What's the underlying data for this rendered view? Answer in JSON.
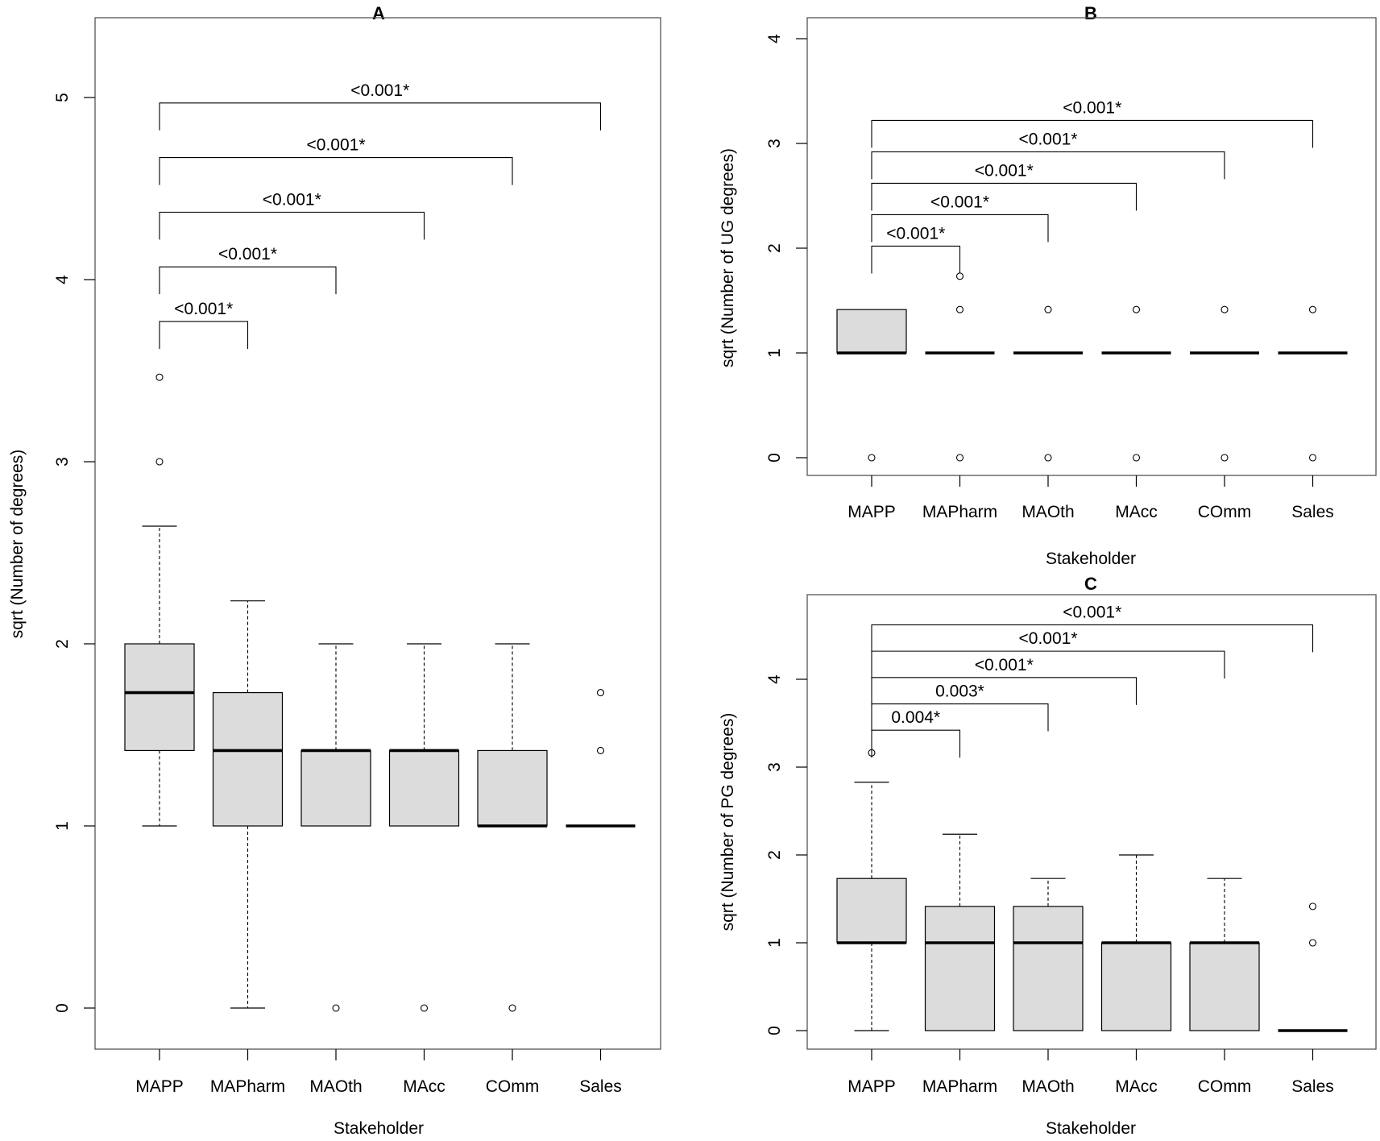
{
  "chart_data": [
    {
      "panel": "A",
      "type": "boxplot",
      "title": "A",
      "xlabel": "Stakeholder",
      "ylabel": "sqrt (Number of degrees)",
      "ylim": [
        0,
        5
      ],
      "yticks": [
        0,
        1,
        2,
        3,
        4,
        5
      ],
      "categories": [
        "MAPP",
        "MAPharm",
        "MAOth",
        "MAcc",
        "COmm",
        "Sales"
      ],
      "boxes": [
        {
          "category": "MAPP",
          "whisker_low": 1.0,
          "q1": 1.414,
          "median": 1.732,
          "q3": 2.0,
          "whisker_high": 2.646,
          "outliers": [
            3.0,
            3.464
          ]
        },
        {
          "category": "MAPharm",
          "whisker_low": 0.0,
          "q1": 1.0,
          "median": 1.414,
          "q3": 1.732,
          "whisker_high": 2.236,
          "outliers": []
        },
        {
          "category": "MAOth",
          "whisker_low": 1.0,
          "q1": 1.0,
          "median": 1.414,
          "q3": 1.414,
          "whisker_high": 2.0,
          "outliers": [
            0.0
          ]
        },
        {
          "category": "MAcc",
          "whisker_low": 1.0,
          "q1": 1.0,
          "median": 1.414,
          "q3": 1.414,
          "whisker_high": 2.0,
          "outliers": [
            0.0
          ]
        },
        {
          "category": "COmm",
          "whisker_low": 1.0,
          "q1": 1.0,
          "median": 1.0,
          "q3": 1.414,
          "whisker_high": 2.0,
          "outliers": [
            0.0
          ]
        },
        {
          "category": "Sales",
          "whisker_low": 1.0,
          "q1": 1.0,
          "median": 1.0,
          "q3": 1.0,
          "whisker_high": 1.0,
          "outliers": [
            1.414,
            1.732
          ]
        }
      ],
      "comparisons": [
        {
          "from": "MAPP",
          "to": "MAPharm",
          "label": "<0.001*",
          "y": 3.77
        },
        {
          "from": "MAPP",
          "to": "MAOth",
          "label": "<0.001*",
          "y": 4.07
        },
        {
          "from": "MAPP",
          "to": "MAcc",
          "label": "<0.001*",
          "y": 4.37
        },
        {
          "from": "MAPP",
          "to": "COmm",
          "label": "<0.001*",
          "y": 4.67
        },
        {
          "from": "MAPP",
          "to": "Sales",
          "label": "<0.001*",
          "y": 4.97
        }
      ]
    },
    {
      "panel": "B",
      "type": "boxplot",
      "title": "B",
      "xlabel": "Stakeholder",
      "ylabel": "sqrt (Number of UG degrees)",
      "ylim": [
        0,
        4
      ],
      "yticks": [
        0,
        1,
        2,
        3,
        4
      ],
      "categories": [
        "MAPP",
        "MAPharm",
        "MAOth",
        "MAcc",
        "COmm",
        "Sales"
      ],
      "boxes": [
        {
          "category": "MAPP",
          "whisker_low": 1.0,
          "q1": 1.0,
          "median": 1.0,
          "q3": 1.414,
          "whisker_high": 1.414,
          "outliers": [
            0.0
          ]
        },
        {
          "category": "MAPharm",
          "whisker_low": 1.0,
          "q1": 1.0,
          "median": 1.0,
          "q3": 1.0,
          "whisker_high": 1.0,
          "outliers": [
            0.0,
            1.414,
            1.732
          ]
        },
        {
          "category": "MAOth",
          "whisker_low": 1.0,
          "q1": 1.0,
          "median": 1.0,
          "q3": 1.0,
          "whisker_high": 1.0,
          "outliers": [
            0.0,
            1.414
          ]
        },
        {
          "category": "MAcc",
          "whisker_low": 1.0,
          "q1": 1.0,
          "median": 1.0,
          "q3": 1.0,
          "whisker_high": 1.0,
          "outliers": [
            0.0,
            1.414
          ]
        },
        {
          "category": "COmm",
          "whisker_low": 1.0,
          "q1": 1.0,
          "median": 1.0,
          "q3": 1.0,
          "whisker_high": 1.0,
          "outliers": [
            0.0,
            1.414
          ]
        },
        {
          "category": "Sales",
          "whisker_low": 1.0,
          "q1": 1.0,
          "median": 1.0,
          "q3": 1.0,
          "whisker_high": 1.0,
          "outliers": [
            0.0,
            1.414
          ]
        }
      ],
      "comparisons": [
        {
          "from": "MAPP",
          "to": "MAPharm",
          "label": "<0.001*",
          "y": 2.02
        },
        {
          "from": "MAPP",
          "to": "MAOth",
          "label": "<0.001*",
          "y": 2.32
        },
        {
          "from": "MAPP",
          "to": "MAcc",
          "label": "<0.001*",
          "y": 2.62
        },
        {
          "from": "MAPP",
          "to": "COmm",
          "label": "<0.001*",
          "y": 2.92
        },
        {
          "from": "MAPP",
          "to": "Sales",
          "label": "<0.001*",
          "y": 3.22
        }
      ]
    },
    {
      "panel": "C",
      "type": "boxplot",
      "title": "C",
      "xlabel": "Stakeholder",
      "ylabel": "sqrt (Number of PG degrees)",
      "ylim": [
        0,
        4.5
      ],
      "yticks": [
        0,
        1,
        2,
        3,
        4
      ],
      "categories": [
        "MAPP",
        "MAPharm",
        "MAOth",
        "MAcc",
        "COmm",
        "Sales"
      ],
      "boxes": [
        {
          "category": "MAPP",
          "whisker_low": 0.0,
          "q1": 1.0,
          "median": 1.0,
          "q3": 1.732,
          "whisker_high": 2.828,
          "outliers": [
            3.162
          ]
        },
        {
          "category": "MAPharm",
          "whisker_low": 0.0,
          "q1": 0.0,
          "median": 1.0,
          "q3": 1.414,
          "whisker_high": 2.236,
          "outliers": []
        },
        {
          "category": "MAOth",
          "whisker_low": 0.0,
          "q1": 0.0,
          "median": 1.0,
          "q3": 1.414,
          "whisker_high": 1.732,
          "outliers": []
        },
        {
          "category": "MAcc",
          "whisker_low": 0.0,
          "q1": 0.0,
          "median": 1.0,
          "q3": 1.0,
          "whisker_high": 2.0,
          "outliers": []
        },
        {
          "category": "COmm",
          "whisker_low": 0.0,
          "q1": 0.0,
          "median": 1.0,
          "q3": 1.0,
          "whisker_high": 1.732,
          "outliers": []
        },
        {
          "category": "Sales",
          "whisker_low": 0.0,
          "q1": 0.0,
          "median": 0.0,
          "q3": 0.0,
          "whisker_high": 0.0,
          "outliers": [
            1.0,
            1.414
          ]
        }
      ],
      "comparisons": [
        {
          "from": "MAPP",
          "to": "MAPharm",
          "label": "0.004*",
          "y": 3.42
        },
        {
          "from": "MAPP",
          "to": "MAOth",
          "label": "0.003*",
          "y": 3.72
        },
        {
          "from": "MAPP",
          "to": "MAcc",
          "label": "<0.001*",
          "y": 4.02
        },
        {
          "from": "MAPP",
          "to": "COmm",
          "label": "<0.001*",
          "y": 4.32
        },
        {
          "from": "MAPP",
          "to": "Sales",
          "label": "<0.001*",
          "y": 4.62
        }
      ]
    }
  ],
  "colors": {
    "box_fill": "#dcdcdc",
    "stroke": "#000000",
    "frame": "#555555"
  }
}
